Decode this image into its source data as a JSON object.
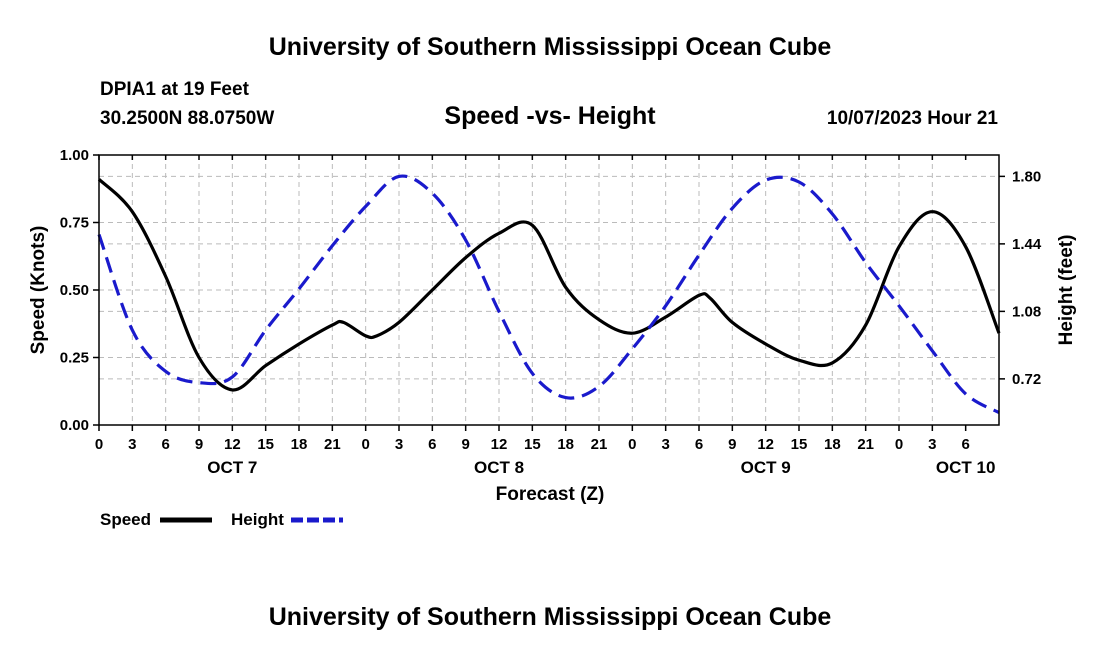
{
  "header": {
    "title": "University of Southern Mississippi Ocean Cube",
    "station": "DPIA1 at 19 Feet",
    "coords": "30.2500N  88.0750W",
    "plot_title": "Speed -vs- Height",
    "date": "10/07/2023 Hour 21"
  },
  "footer": {
    "title": "University of Southern Mississippi Ocean Cube"
  },
  "colors": {
    "speed": "#000000",
    "height": "#1a1acc",
    "grid": "#bbbbbb"
  },
  "chart_data": {
    "type": "line",
    "title": "Speed -vs- Height",
    "xlabel": "Forecast (Z)",
    "ylabel": "Speed (Knots)",
    "y2label": "Height (feet)",
    "x_hours_range": [
      0,
      81
    ],
    "ylim": [
      0,
      1.0
    ],
    "y2lim": [
      0.474,
      1.914
    ],
    "y_ticks": [
      "0.00",
      "0.25",
      "0.50",
      "0.75",
      "1.00"
    ],
    "y2_ticks": [
      "0.72",
      "1.08",
      "1.44",
      "1.80"
    ],
    "x_tick_labels": [
      "0",
      "3",
      "6",
      "9",
      "12",
      "15",
      "18",
      "21",
      "0",
      "3",
      "6",
      "9",
      "12",
      "15",
      "18",
      "21",
      "0",
      "3",
      "6",
      "9",
      "12",
      "15",
      "18",
      "21",
      "0",
      "3",
      "6"
    ],
    "day_labels": [
      {
        "label": "OCT 7",
        "hour": 12
      },
      {
        "label": "OCT 8",
        "hour": 36
      },
      {
        "label": "OCT 9",
        "hour": 60
      },
      {
        "label": "OCT 10",
        "hour": 78
      }
    ],
    "series": [
      {
        "name": "Speed",
        "axis": "left",
        "style": "solid",
        "x": [
          0,
          3,
          6,
          9,
          12,
          15,
          18,
          21,
          22,
          24,
          25,
          27,
          30,
          33,
          36,
          39,
          42,
          45,
          48,
          51,
          54,
          55,
          57,
          60,
          63,
          66,
          69,
          72,
          75,
          78,
          81
        ],
        "values": [
          0.91,
          0.79,
          0.55,
          0.25,
          0.13,
          0.22,
          0.3,
          0.37,
          0.38,
          0.33,
          0.33,
          0.38,
          0.5,
          0.62,
          0.71,
          0.74,
          0.51,
          0.39,
          0.34,
          0.4,
          0.48,
          0.47,
          0.38,
          0.3,
          0.24,
          0.23,
          0.37,
          0.66,
          0.79,
          0.66,
          0.34
        ]
      },
      {
        "name": "Height",
        "axis": "right",
        "style": "dashed",
        "x": [
          0,
          3,
          6,
          9,
          12,
          15,
          18,
          21,
          24,
          27,
          30,
          33,
          36,
          39,
          42,
          45,
          48,
          51,
          54,
          57,
          60,
          63,
          66,
          69,
          72,
          75,
          78,
          81
        ],
        "values": [
          1.49,
          0.98,
          0.76,
          0.7,
          0.73,
          0.98,
          1.2,
          1.43,
          1.64,
          1.8,
          1.71,
          1.46,
          1.08,
          0.75,
          0.62,
          0.68,
          0.88,
          1.11,
          1.38,
          1.63,
          1.78,
          1.77,
          1.6,
          1.34,
          1.11,
          0.87,
          0.64,
          0.54
        ]
      }
    ],
    "legend": [
      {
        "label": "Speed",
        "style": "solid"
      },
      {
        "label": "Height",
        "style": "dashed"
      }
    ],
    "legend_position": "bottom-left",
    "grid": true
  }
}
